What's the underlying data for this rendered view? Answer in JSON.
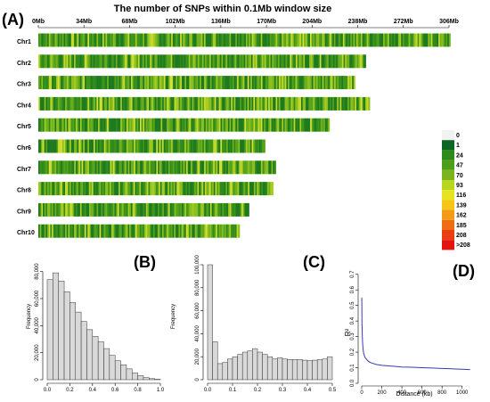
{
  "panel_a": {
    "panel_label": "(A)",
    "title": "The number of SNPs within 0.1Mb window size",
    "tick_labels": [
      "0Mb",
      "34Mb",
      "68Mb",
      "102Mb",
      "136Mb",
      "170Mb",
      "204Mb",
      "238Mb",
      "272Mb",
      "306Mb"
    ],
    "legend": [
      "0",
      "1",
      "24",
      "47",
      "70",
      "93",
      "116",
      "139",
      "162",
      "185",
      "208",
      ">208"
    ],
    "legend_colors": [
      "#f2f2f2",
      "#0b6623",
      "#2f8a1c",
      "#4f9e1a",
      "#7ab51f",
      "#b9d61e",
      "#e8e321",
      "#f5c518",
      "#f39b16",
      "#ef6d14",
      "#ea3f12",
      "#e3140f"
    ]
  },
  "panel_b": {
    "panel_label": "(B)",
    "ylabel": "Frequency",
    "y_ticks": [
      "0",
      "20,000",
      "40,000",
      "60,000",
      "80,000"
    ],
    "x_ticks": [
      "0.0",
      "0.2",
      "0.4",
      "0.6",
      "0.8",
      "1.0"
    ]
  },
  "panel_c": {
    "panel_label": "(C)",
    "ylabel": "Frequency",
    "y_ticks": [
      "0",
      "20,000",
      "40,000",
      "60,000",
      "80,000",
      "100,000"
    ],
    "x_ticks": [
      "0.0",
      "0.1",
      "0.2",
      "0.3",
      "0.4",
      "0.5"
    ]
  },
  "panel_d": {
    "panel_label": "(D)",
    "ylabel": "R²",
    "xlabel": "Distance (kb)",
    "y_ticks": [
      "0.0",
      "0.1",
      "0.2",
      "0.3",
      "0.4",
      "0.5",
      "0.6",
      "0.7"
    ],
    "x_ticks": [
      "0",
      "200",
      "400",
      "600",
      "800",
      "1000"
    ]
  },
  "chart_data": [
    {
      "type": "heatmap",
      "title": "The number of SNPs within 0.1Mb window size",
      "xlim": [
        0,
        306
      ],
      "x_unit": "Mb",
      "categories": [
        "Chr1",
        "Chr2",
        "Chr3",
        "Chr4",
        "Chr5",
        "Chr6",
        "Chr7",
        "Chr8",
        "Chr9",
        "Chr10"
      ],
      "chromosome_lengths_mb": [
        307,
        244,
        236,
        247,
        217,
        169,
        177,
        175,
        157,
        150
      ],
      "legend_bins": [
        "0",
        "1",
        "24",
        "47",
        "70",
        "93",
        "116",
        "139",
        "162",
        "185",
        "208",
        ">208"
      ]
    },
    {
      "type": "bar",
      "ylabel": "Frequency",
      "xlim": [
        0,
        1.0
      ],
      "ylim": [
        0,
        85000
      ],
      "bin_width": 0.05,
      "bin_starts": [
        0.0,
        0.05,
        0.1,
        0.15,
        0.2,
        0.25,
        0.3,
        0.35,
        0.4,
        0.45,
        0.5,
        0.55,
        0.6,
        0.65,
        0.7,
        0.75,
        0.8,
        0.85,
        0.9,
        0.95
      ],
      "values": [
        74000,
        79000,
        73000,
        65000,
        57000,
        50000,
        43000,
        37000,
        32000,
        28000,
        23000,
        18000,
        14000,
        11000,
        8000,
        5000,
        3000,
        1500,
        800,
        300
      ]
    },
    {
      "type": "bar",
      "ylabel": "Frequency",
      "xlim": [
        0,
        0.5
      ],
      "ylim": [
        0,
        100000
      ],
      "bin_width": 0.02,
      "bin_starts": [
        0.0,
        0.02,
        0.04,
        0.06,
        0.08,
        0.1,
        0.12,
        0.14,
        0.16,
        0.18,
        0.2,
        0.22,
        0.24,
        0.26,
        0.28,
        0.3,
        0.32,
        0.34,
        0.36,
        0.38,
        0.4,
        0.42,
        0.44,
        0.46,
        0.48
      ],
      "values": [
        100000,
        33000,
        14000,
        15000,
        18000,
        20000,
        22000,
        24000,
        25000,
        27000,
        24000,
        22000,
        20000,
        18000,
        19000,
        18000,
        17500,
        17500,
        17500,
        17000,
        16500,
        17000,
        17500,
        18000,
        20000
      ]
    },
    {
      "type": "line",
      "xlabel": "Distance (kb)",
      "ylabel": "R²",
      "xlim": [
        0,
        1100
      ],
      "ylim": [
        0,
        0.75
      ],
      "x": [
        1,
        3,
        6,
        10,
        15,
        20,
        30,
        40,
        60,
        80,
        100,
        150,
        200,
        300,
        400,
        500,
        600,
        700,
        800,
        900,
        1000,
        1080
      ],
      "y": [
        0.55,
        0.38,
        0.3,
        0.25,
        0.21,
        0.19,
        0.17,
        0.16,
        0.145,
        0.135,
        0.13,
        0.12,
        0.115,
        0.11,
        0.105,
        0.103,
        0.1,
        0.098,
        0.095,
        0.093,
        0.09,
        0.088
      ]
    }
  ]
}
